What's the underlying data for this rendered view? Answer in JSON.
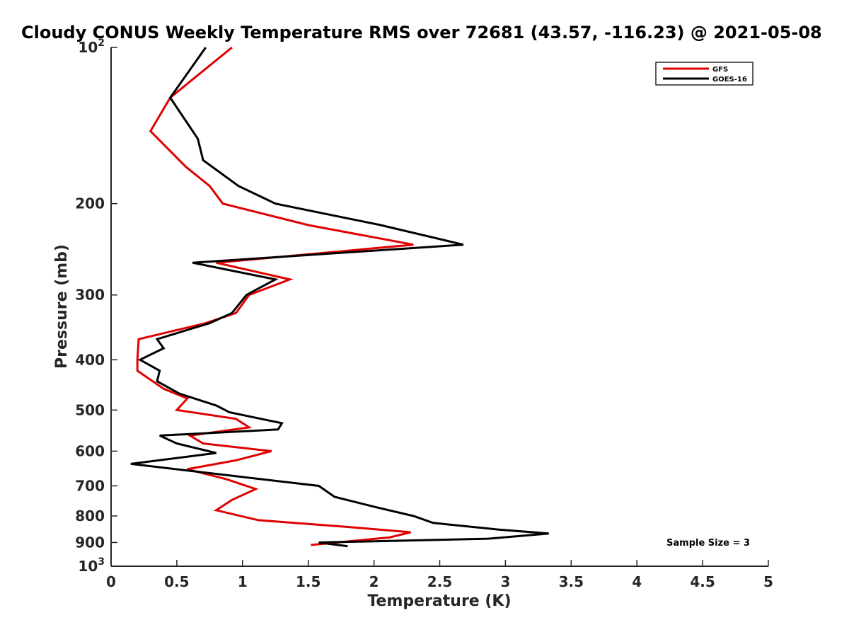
{
  "chart_data": {
    "type": "line",
    "title": "Cloudy CONUS Weekly Temperature RMS over 72681 (43.57, -116.23) @ 2021-05-08",
    "xlabel": "Temperature (K)",
    "ylabel": "Pressure (mb)",
    "xlim": [
      0,
      5
    ],
    "ylim": [
      100,
      1000
    ],
    "yscale": "log",
    "y_reversed": true,
    "xticks": [
      0,
      0.5,
      1,
      1.5,
      2,
      2.5,
      3,
      3.5,
      4,
      4.5,
      5
    ],
    "xtick_labels": [
      "0",
      "0.5",
      "1",
      "1.5",
      "2",
      "2.5",
      "3",
      "3.5",
      "4",
      "4.5",
      "5"
    ],
    "yticks": [
      100,
      200,
      300,
      400,
      500,
      600,
      700,
      800,
      900,
      1000
    ],
    "ytick_labels": [
      {
        "base": "10",
        "exp": "2"
      },
      {
        "base": "200",
        "exp": ""
      },
      {
        "base": "300",
        "exp": ""
      },
      {
        "base": "400",
        "exp": ""
      },
      {
        "base": "500",
        "exp": ""
      },
      {
        "base": "600",
        "exp": ""
      },
      {
        "base": "700",
        "exp": ""
      },
      {
        "base": "800",
        "exp": ""
      },
      {
        "base": "900",
        "exp": ""
      },
      {
        "base": "10",
        "exp": "3"
      }
    ],
    "grid": false,
    "legend_position": "top-right",
    "annotation": "Sample Size = 3",
    "series": [
      {
        "name": "GFS",
        "color": "#e00000",
        "points": [
          [
            0.92,
            100
          ],
          [
            0.45,
            125
          ],
          [
            0.3,
            145
          ],
          [
            0.57,
            170
          ],
          [
            0.75,
            185
          ],
          [
            0.85,
            200
          ],
          [
            1.5,
            220
          ],
          [
            2.3,
            240
          ],
          [
            0.8,
            260
          ],
          [
            1.36,
            280
          ],
          [
            1.05,
            300
          ],
          [
            0.95,
            325
          ],
          [
            0.72,
            340
          ],
          [
            0.21,
            365
          ],
          [
            0.2,
            400
          ],
          [
            0.2,
            420
          ],
          [
            0.4,
            455
          ],
          [
            0.58,
            475
          ],
          [
            0.5,
            500
          ],
          [
            0.95,
            520
          ],
          [
            1.05,
            540
          ],
          [
            0.6,
            560
          ],
          [
            0.7,
            580
          ],
          [
            1.22,
            600
          ],
          [
            0.95,
            625
          ],
          [
            0.58,
            650
          ],
          [
            0.88,
            680
          ],
          [
            1.1,
            710
          ],
          [
            0.92,
            745
          ],
          [
            0.8,
            780
          ],
          [
            1.12,
            815
          ],
          [
            1.8,
            840
          ],
          [
            2.28,
            860
          ],
          [
            2.12,
            880
          ],
          [
            1.52,
            910
          ]
        ]
      },
      {
        "name": "GOES-16",
        "color": "#000000",
        "points": [
          [
            0.72,
            100
          ],
          [
            0.45,
            125
          ],
          [
            0.66,
            150
          ],
          [
            0.7,
            165
          ],
          [
            0.97,
            185
          ],
          [
            1.25,
            200
          ],
          [
            2.05,
            220
          ],
          [
            2.68,
            240
          ],
          [
            0.62,
            260
          ],
          [
            1.25,
            280
          ],
          [
            1.03,
            300
          ],
          [
            0.92,
            325
          ],
          [
            0.75,
            340
          ],
          [
            0.35,
            365
          ],
          [
            0.4,
            380
          ],
          [
            0.22,
            400
          ],
          [
            0.37,
            420
          ],
          [
            0.35,
            440
          ],
          [
            0.52,
            465
          ],
          [
            0.8,
            490
          ],
          [
            0.9,
            505
          ],
          [
            1.3,
            530
          ],
          [
            1.27,
            545
          ],
          [
            0.37,
            560
          ],
          [
            0.5,
            580
          ],
          [
            0.8,
            605
          ],
          [
            0.15,
            635
          ],
          [
            1.58,
            700
          ],
          [
            1.7,
            735
          ],
          [
            2.02,
            770
          ],
          [
            2.3,
            800
          ],
          [
            2.45,
            825
          ],
          [
            2.95,
            850
          ],
          [
            3.33,
            865
          ],
          [
            2.87,
            885
          ],
          [
            1.58,
            900
          ],
          [
            1.8,
            915
          ]
        ]
      }
    ]
  }
}
